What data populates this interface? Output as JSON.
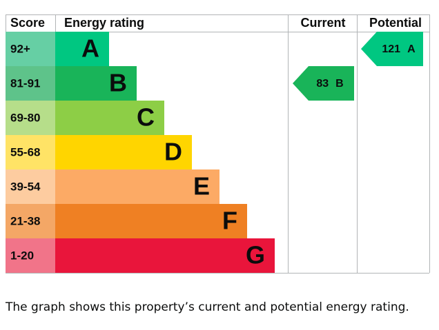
{
  "header": {
    "score": "Score",
    "energy_rating": "Energy rating",
    "current": "Current",
    "potential": "Potential"
  },
  "bands": [
    {
      "score": "92+",
      "rating": "A",
      "color": "#00c781",
      "score_color": "#66cfa4"
    },
    {
      "score": "81-91",
      "rating": "B",
      "color": "#19b459",
      "score_color": "#5ec38a"
    },
    {
      "score": "69-80",
      "rating": "C",
      "color": "#8dce46",
      "score_color": "#b6de8a"
    },
    {
      "score": "55-68",
      "rating": "D",
      "color": "#ffd500",
      "score_color": "#ffe366"
    },
    {
      "score": "39-54",
      "rating": "E",
      "color": "#fcaa65",
      "score_color": "#fdcca0"
    },
    {
      "score": "21-38",
      "rating": "F",
      "color": "#ef8023",
      "score_color": "#f4a766"
    },
    {
      "score": "1-20",
      "rating": "G",
      "color": "#e9153b",
      "score_color": "#f17489"
    }
  ],
  "current": {
    "value": 83,
    "rating": "B"
  },
  "potential": {
    "value": 121,
    "rating": "A"
  },
  "caption": "The graph shows this property’s current and potential energy rating."
}
